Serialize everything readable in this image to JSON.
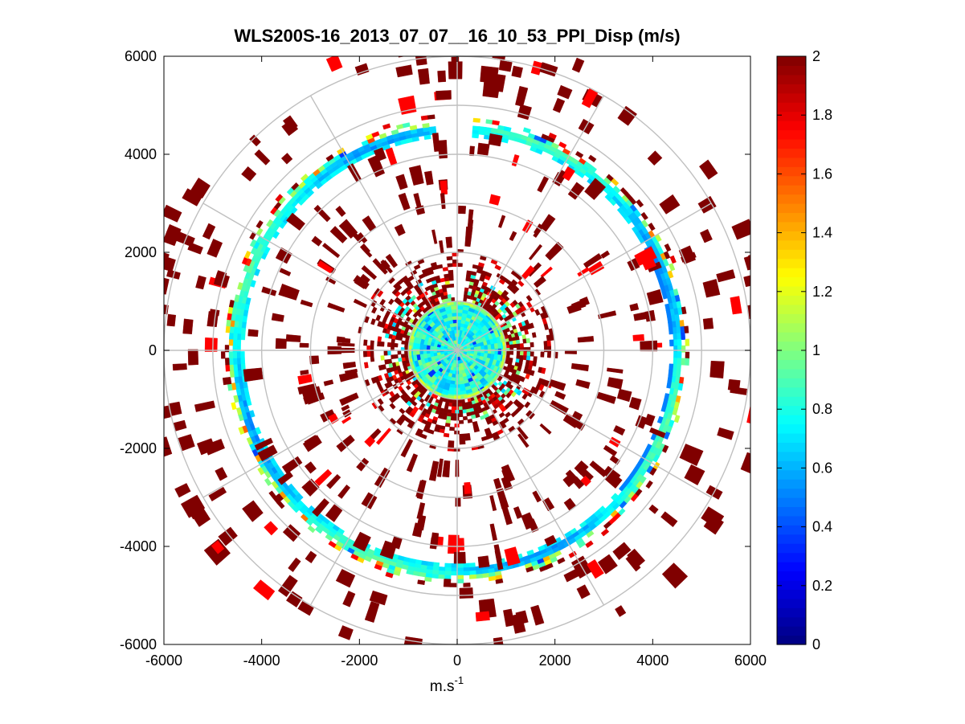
{
  "chart_data": {
    "type": "heatmap",
    "subtype": "polar-ppi",
    "title": "WLS200S-16_2013_07_07__16_10_53_PPI_Disp (m/s)",
    "xlabel": "m.s",
    "xlabel_superscript": "-1",
    "ylabel": "",
    "xlim": [
      -6000,
      6000
    ],
    "ylim": [
      -6000,
      6000
    ],
    "x_ticks": [
      -6000,
      -4000,
      -2000,
      0,
      2000,
      4000,
      6000
    ],
    "x_tick_labels": [
      "-6000",
      "-4000",
      "-2000",
      "0",
      "2000",
      "4000",
      "6000"
    ],
    "y_ticks": [
      -6000,
      -4000,
      -2000,
      0,
      2000,
      4000,
      6000
    ],
    "y_tick_labels": [
      "-6000",
      "-4000",
      "-2000",
      "0",
      "2000",
      "4000",
      "6000"
    ],
    "polar_grid": {
      "ring_radii": [
        1000,
        2000,
        3000,
        4000,
        5000,
        6000
      ],
      "spoke_angles_deg": [
        0,
        30,
        60,
        90,
        120,
        150,
        180,
        210,
        240,
        270,
        300,
        330
      ]
    },
    "grid": true,
    "colorbar": {
      "colormap": "jet",
      "min": 0,
      "max": 2,
      "ticks": [
        0,
        0.2,
        0.4,
        0.6,
        0.8,
        1,
        1.2,
        1.4,
        1.6,
        1.8,
        2
      ],
      "tick_labels": [
        "0",
        "0.2",
        "0.4",
        "0.6",
        "0.8",
        "1",
        "1.2",
        "1.4",
        "1.6",
        "1.8",
        "2"
      ],
      "location": "right"
    },
    "data_note_regions": [
      {
        "region": "inner-disk",
        "range_r": [
          0,
          950
        ],
        "typical_value": 0.75
      },
      {
        "region": "ring-1",
        "range_r": [
          4400,
          4800
        ],
        "typical_value": 0.75
      }
    ]
  }
}
